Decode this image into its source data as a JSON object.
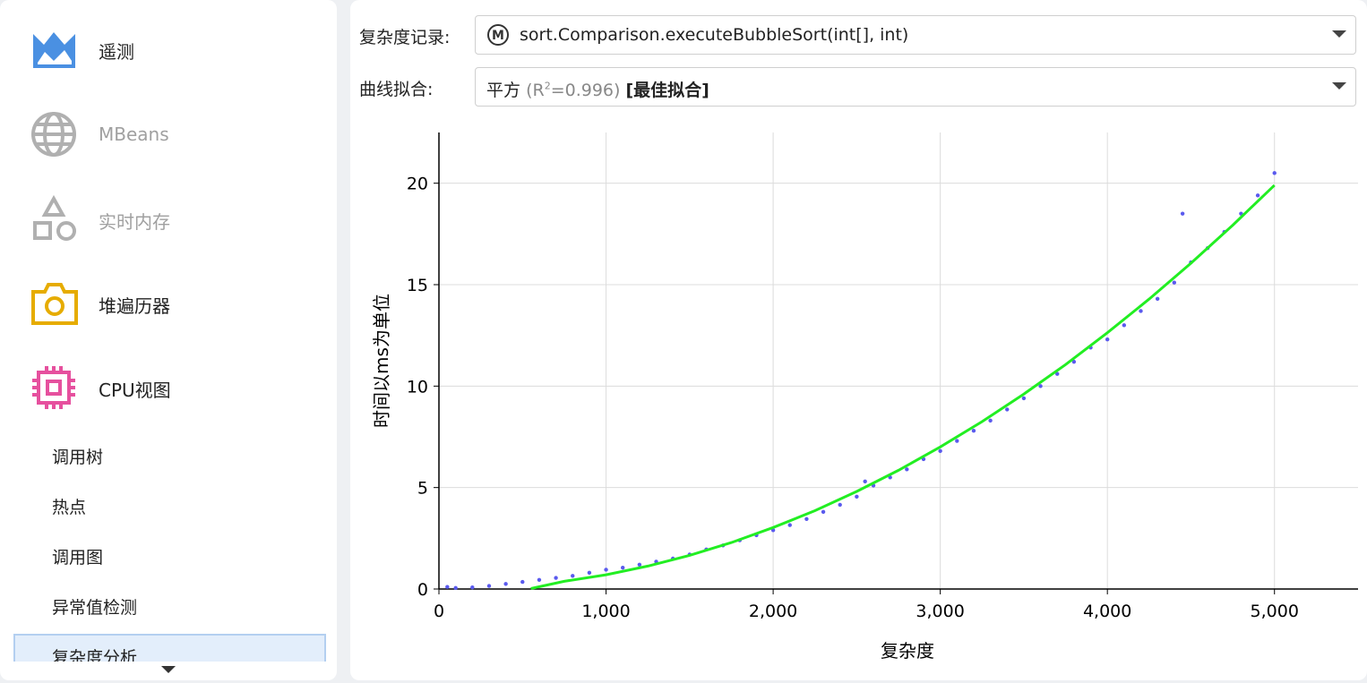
{
  "sidebar": {
    "items": [
      "遥测",
      "MBeans",
      "实时内存",
      "堆遍历器",
      "CPU视图"
    ],
    "subitems": [
      "调用树",
      "热点",
      "调用图",
      "异常值检测",
      "复杂度分析"
    ]
  },
  "controls": {
    "record_label": "复杂度记录:",
    "record_badge": "M",
    "record_value": "sort.Comparison.executeBubbleSort(int[], int)",
    "fit_label": "曲线拟合:",
    "fit_name": "平方",
    "fit_r_prefix": "(R",
    "fit_r_sup": "2",
    "fit_r_value": "=0.996)",
    "fit_best": "[最佳拟合]"
  },
  "chart_data": {
    "type": "scatter",
    "x_label": "复杂度",
    "y_label": "时间以ms为单位",
    "xlim": [
      0,
      5500
    ],
    "ylim": [
      0,
      22.5
    ],
    "xticks": [
      0,
      {
        "value": 1000,
        "label": "1,000"
      },
      {
        "value": 2000,
        "label": "2,000"
      },
      {
        "value": 3000,
        "label": "3,000"
      },
      {
        "value": 4000,
        "label": "4,000"
      },
      {
        "value": 5000,
        "label": "5,000"
      }
    ],
    "yticks": [
      0,
      5,
      10,
      15,
      20
    ],
    "grid": true,
    "series": [
      {
        "type": "scatter",
        "color": "#5a5aee",
        "x": [
          50,
          100,
          200,
          300,
          400,
          500,
          600,
          700,
          800,
          900,
          1000,
          1100,
          1200,
          1300,
          1400,
          1500,
          1600,
          1700,
          1800,
          1900,
          2000,
          2100,
          2200,
          2300,
          2400,
          2500,
          2550,
          2600,
          2700,
          2800,
          2900,
          3000,
          3100,
          3200,
          3300,
          3400,
          3500,
          3600,
          3700,
          3800,
          3900,
          4000,
          4100,
          4200,
          4300,
          4400,
          4450,
          4500,
          4600,
          4700,
          4800,
          4900,
          5000
        ],
        "values": [
          0.1,
          0.05,
          0.08,
          0.15,
          0.25,
          0.35,
          0.45,
          0.55,
          0.65,
          0.8,
          0.95,
          1.05,
          1.2,
          1.35,
          1.5,
          1.7,
          1.95,
          2.15,
          2.4,
          2.65,
          2.9,
          3.15,
          3.45,
          3.8,
          4.15,
          4.55,
          5.3,
          5.1,
          5.5,
          5.9,
          6.4,
          6.8,
          7.3,
          7.8,
          8.3,
          8.85,
          9.4,
          10.0,
          10.6,
          11.2,
          11.9,
          12.3,
          13.0,
          13.7,
          14.3,
          15.1,
          18.5,
          16.1,
          16.8,
          17.6,
          18.5,
          19.4,
          20.5
        ]
      },
      {
        "type": "line",
        "color": "#22ee22",
        "x": [
          550,
          750,
          1000,
          1250,
          1500,
          1750,
          2000,
          2250,
          2500,
          2750,
          3000,
          3250,
          3500,
          3750,
          4000,
          4250,
          4500,
          4750,
          5000
        ],
        "values": [
          0.02,
          0.38,
          0.7,
          1.13,
          1.66,
          2.29,
          3.03,
          3.86,
          4.81,
          5.85,
          7.0,
          8.25,
          9.61,
          11.06,
          12.63,
          14.29,
          16.06,
          17.93,
          19.9
        ]
      }
    ]
  }
}
